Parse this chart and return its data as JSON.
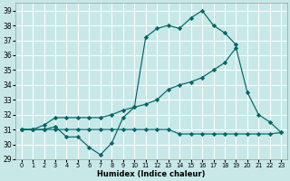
{
  "xlabel": "Humidex (Indice chaleur)",
  "xlim": [
    -0.5,
    23.5
  ],
  "ylim": [
    29,
    39.5
  ],
  "yticks": [
    29,
    30,
    31,
    32,
    33,
    34,
    35,
    36,
    37,
    38,
    39
  ],
  "xticks": [
    0,
    1,
    2,
    3,
    4,
    5,
    6,
    7,
    8,
    9,
    10,
    11,
    12,
    13,
    14,
    15,
    16,
    17,
    18,
    19,
    20,
    21,
    22,
    23
  ],
  "bg_color": "#c8e8e8",
  "grid_color": "#ffffff",
  "line_color": "#006666",
  "series": {
    "line1": {
      "x": [
        0,
        1,
        2,
        3,
        4,
        5,
        6,
        7,
        8,
        9,
        10,
        11,
        12,
        13,
        14,
        15,
        16,
        17,
        18,
        19,
        20,
        21,
        22,
        23
      ],
      "y": [
        31,
        31,
        31,
        31.2,
        30.5,
        30.5,
        29.8,
        29.3,
        30.1,
        31.8,
        32.5,
        37.2,
        37.8,
        38.0,
        37.8,
        38.5,
        39.0,
        38.0,
        37.5,
        36.7,
        null,
        null,
        null,
        null
      ]
    },
    "line2": {
      "x": [
        0,
        1,
        2,
        3,
        4,
        5,
        6,
        7,
        8,
        9,
        10,
        11,
        12,
        13,
        14,
        15,
        16,
        17,
        18,
        19,
        20,
        21,
        22,
        23
      ],
      "y": [
        31,
        31,
        31.3,
        31.8,
        31.8,
        31.8,
        31.8,
        31.8,
        32.0,
        32.3,
        32.5,
        32.7,
        33.0,
        33.7,
        34.0,
        34.2,
        34.5,
        35.0,
        35.5,
        36.5,
        33.5,
        32.0,
        31.5,
        30.8
      ]
    },
    "line3": {
      "x": [
        0,
        1,
        2,
        3,
        4,
        5,
        6,
        7,
        8,
        9,
        10,
        11,
        12,
        13,
        14,
        15,
        16,
        17,
        18,
        19,
        20,
        21,
        22,
        23
      ],
      "y": [
        31,
        31,
        31,
        31,
        31,
        31,
        31,
        31,
        31,
        31,
        31,
        31,
        31,
        31,
        30.7,
        30.7,
        30.7,
        30.7,
        30.7,
        30.7,
        30.7,
        30.7,
        30.7,
        30.8
      ]
    }
  }
}
